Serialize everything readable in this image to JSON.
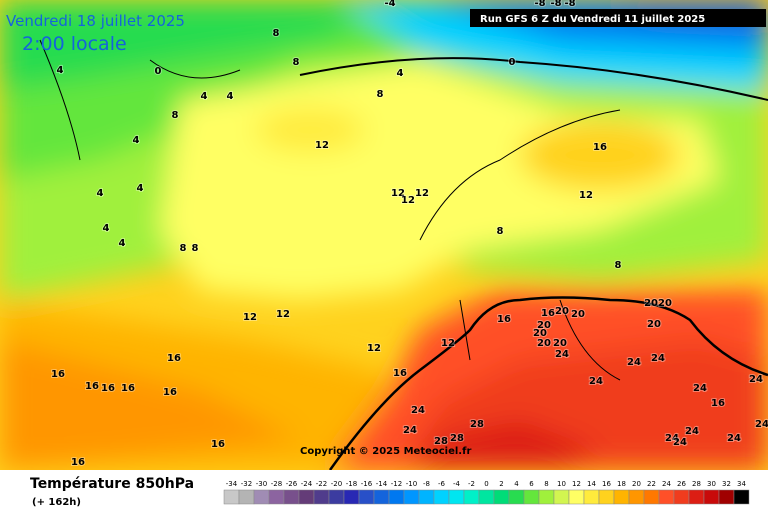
{
  "header": {
    "date": "Vendredi 18 juillet 2025",
    "time": "2:00 locale",
    "run": "Run GFS 6 Z du Vendredi 11 juillet 2025"
  },
  "copyright": "Copyright © 2025 Meteociel.fr",
  "footer": {
    "title": "Température 850hPa",
    "subtitle": "(+ 162h)"
  },
  "contour_labels": [
    "-4",
    "-8",
    "-8",
    "-8",
    "8",
    "8",
    "4",
    "0",
    "4",
    "0",
    "8",
    "4",
    "4",
    "8",
    "12",
    "4",
    "4",
    "4",
    "16",
    "12",
    "12",
    "12",
    "12",
    "8",
    "4",
    "4",
    "8",
    "8",
    "8",
    "12",
    "12",
    "12",
    "12",
    "16",
    "16",
    "16",
    "16",
    "16",
    "16",
    "16",
    "16",
    "16",
    "24",
    "16",
    "16",
    "20",
    "20",
    "20",
    "20",
    "2020",
    "20",
    "20",
    "20",
    "24",
    "24",
    "24",
    "24",
    "24",
    "16",
    "24",
    "24",
    "28",
    "28",
    "28",
    "24",
    "24",
    "24",
    "24",
    "24"
  ],
  "legend": {
    "labels": [
      -34,
      -32,
      -30,
      -28,
      -26,
      -24,
      -22,
      -20,
      -18,
      -16,
      -14,
      -12,
      -10,
      -8,
      -6,
      -4,
      -2,
      0,
      2,
      4,
      6,
      8,
      10,
      12,
      14,
      16,
      18,
      20,
      22,
      24,
      26,
      28,
      30,
      32,
      34
    ],
    "colors": [
      "#c8c8c8",
      "#b4b4b4",
      "#a08cb4",
      "#8c64a0",
      "#78508c",
      "#643c78",
      "#503c8c",
      "#3c3ca0",
      "#2828b4",
      "#2850c8",
      "#1464dc",
      "#0078f0",
      "#0096ff",
      "#00b4ff",
      "#00d2ff",
      "#00e6f0",
      "#00f0c8",
      "#00e6a0",
      "#00dc78",
      "#28dc50",
      "#64e63c",
      "#a0f03c",
      "#d2f550",
      "#ffff64",
      "#ffeb3c",
      "#ffd21e",
      "#ffb400",
      "#ff9600",
      "#ff7800",
      "#ff5028",
      "#f03c1e",
      "#dc1e14",
      "#c80a0a",
      "#a00000",
      "#000000"
    ]
  }
}
